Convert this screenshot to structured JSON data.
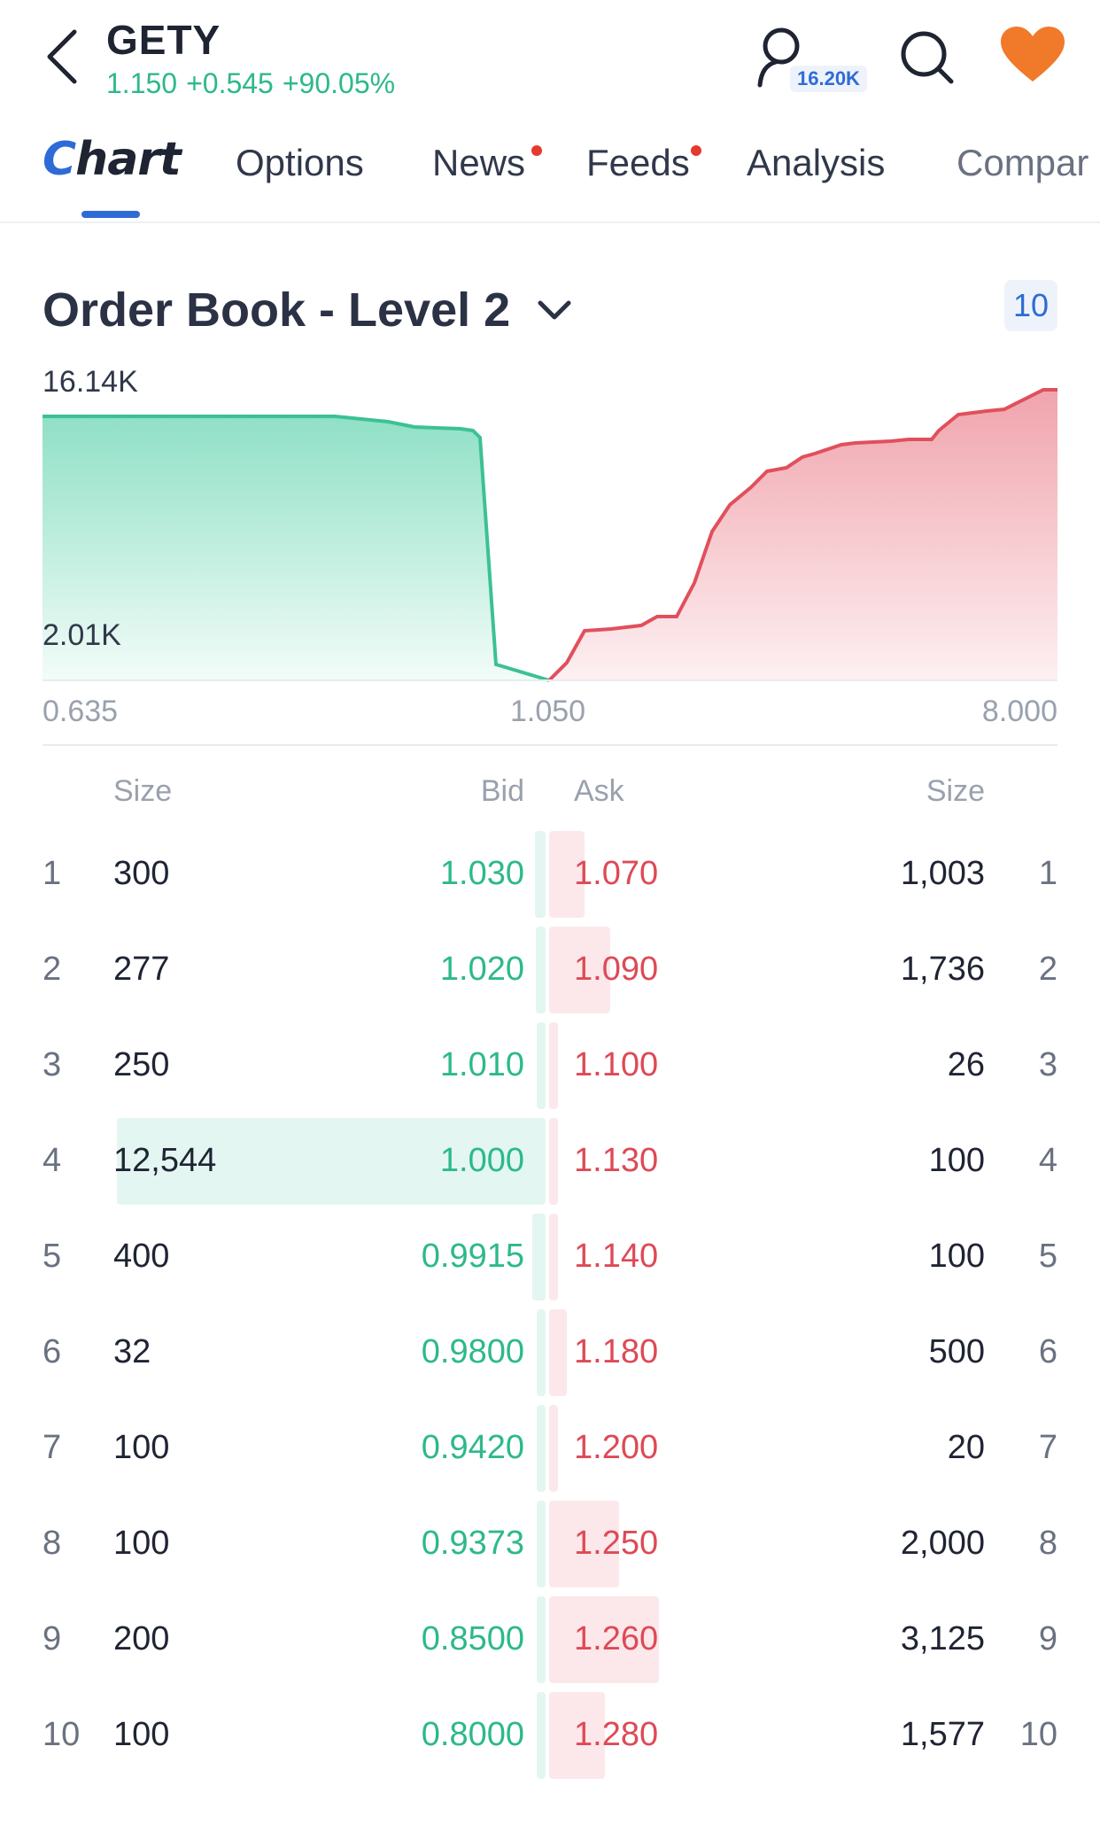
{
  "header": {
    "ticker": "GETY",
    "price": "1.150",
    "change": "+0.545",
    "change_pct": "+90.05%",
    "watchers": "16.20K"
  },
  "tabs": [
    {
      "label_prefix": "C",
      "label_rest": "hart",
      "active": true
    },
    {
      "label": "Options"
    },
    {
      "label": "News",
      "dot": true
    },
    {
      "label": "Feeds",
      "dot": true
    },
    {
      "label": "Analysis"
    },
    {
      "label": "Compar"
    }
  ],
  "order_book": {
    "title": "Order Book - Level 2",
    "depth": "10",
    "chart": {
      "y_max_label": "16.14K",
      "y_min_label": "2.01K",
      "x_labels": [
        "0.635",
        "1.050",
        "8.000"
      ]
    },
    "columns": {
      "bid_size": "Size",
      "bid": "Bid",
      "ask": "Ask",
      "ask_size": "Size"
    },
    "rows": [
      {
        "rank": "1",
        "bid_size": "300",
        "bid": "1.030",
        "ask": "1.070",
        "ask_size": "1,003",
        "bid_frac": 0.024,
        "ask_frac": 0.32
      },
      {
        "rank": "2",
        "bid_size": "277",
        "bid": "1.020",
        "ask": "1.090",
        "ask_size": "1,736",
        "bid_frac": 0.022,
        "ask_frac": 0.555
      },
      {
        "rank": "3",
        "bid_size": "250",
        "bid": "1.010",
        "ask": "1.100",
        "ask_size": "26",
        "bid_frac": 0.02,
        "ask_frac": 0.01
      },
      {
        "rank": "4",
        "bid_size": "12,544",
        "bid": "1.000",
        "ask": "1.130",
        "ask_size": "100",
        "bid_frac": 1.0,
        "ask_frac": 0.032
      },
      {
        "rank": "5",
        "bid_size": "400",
        "bid": "0.9915",
        "ask": "1.140",
        "ask_size": "100",
        "bid_frac": 0.032,
        "ask_frac": 0.032
      },
      {
        "rank": "6",
        "bid_size": "32",
        "bid": "0.9800",
        "ask": "1.180",
        "ask_size": "500",
        "bid_frac": 0.003,
        "ask_frac": 0.16
      },
      {
        "rank": "7",
        "bid_size": "100",
        "bid": "0.9420",
        "ask": "1.200",
        "ask_size": "20",
        "bid_frac": 0.008,
        "ask_frac": 0.008
      },
      {
        "rank": "8",
        "bid_size": "100",
        "bid": "0.9373",
        "ask": "1.250",
        "ask_size": "2,000",
        "bid_frac": 0.008,
        "ask_frac": 0.64
      },
      {
        "rank": "9",
        "bid_size": "200",
        "bid": "0.8500",
        "ask": "1.260",
        "ask_size": "3,125",
        "bid_frac": 0.016,
        "ask_frac": 1.0
      },
      {
        "rank": "10",
        "bid_size": "100",
        "bid": "0.8000",
        "ask": "1.280",
        "ask_size": "1,577",
        "bid_frac": 0.008,
        "ask_frac": 0.505
      }
    ]
  },
  "colors": {
    "bid": "#2db98a",
    "ask": "#dd4a56",
    "accent": "#2e6bd6",
    "favorite": "#f07a2a"
  }
}
